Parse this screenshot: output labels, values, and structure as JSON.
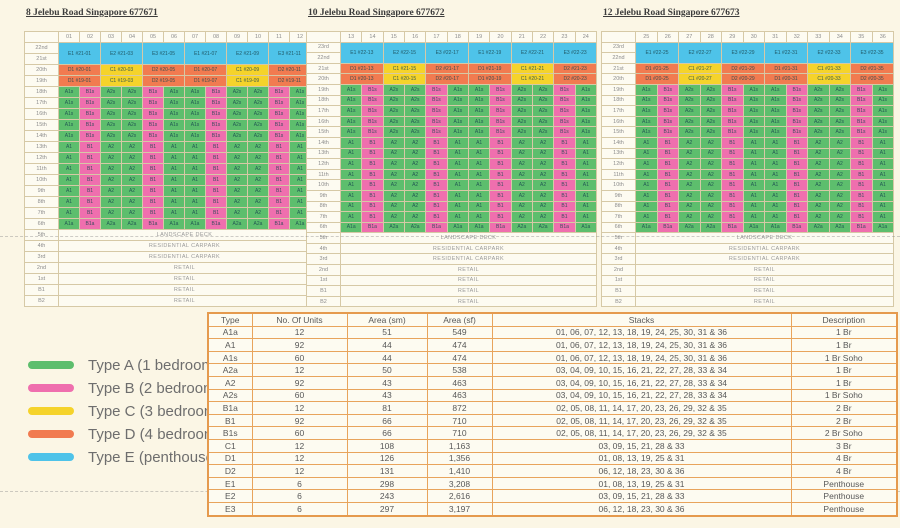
{
  "type_colors": {
    "A": "#5dbe6d",
    "B": "#ef6fae",
    "C": "#f5d32b",
    "D": "#f17b50",
    "E": "#4ec3e9"
  },
  "unit_patterns": {
    "std": [
      "A1",
      "B1",
      "A2",
      "A2",
      "B1",
      "A1",
      "A1",
      "B1",
      "A2",
      "A2",
      "B1",
      "A1"
    ],
    "soho": [
      "A1s",
      "B1s",
      "A2s",
      "A2s",
      "B1s",
      "A1s",
      "A1s",
      "B1s",
      "A2s",
      "A2s",
      "B1s",
      "A1s"
    ],
    "a6": [
      "A1a",
      "B1a",
      "A2a",
      "A2a",
      "B1a",
      "A1a",
      "A1a",
      "B1a",
      "A2a",
      "A2a",
      "B1a",
      "A1a"
    ]
  },
  "buildings": [
    {
      "title": "8 Jelebu Road Singapore 677671",
      "stacks": [
        "01",
        "02",
        "03",
        "04",
        "05",
        "06",
        "07",
        "08",
        "09",
        "10",
        "11",
        "12"
      ],
      "rows": [
        {
          "label": "22nd",
          "kind": "pent",
          "cells": [
            "E1 #21-01",
            "E2 #21-03",
            "E3 #21-05",
            "E1 #21-07",
            "E2 #21-09",
            "E3 #21-11"
          ]
        },
        {
          "label": "21st",
          "kind": "pent2"
        },
        {
          "label": "20th",
          "kind": "pairs",
          "cells": [
            "D1 #20-01",
            "C1 #20-03",
            "D2 #20-05",
            "D1 #20-07",
            "C1 #20-09",
            "D2 #20-11"
          ]
        },
        {
          "label": "19th",
          "kind": "pairs",
          "cells": [
            "D1 #19-01",
            "C1 #19-03",
            "D2 #19-05",
            "D1 #19-07",
            "C1 #19-09",
            "D2 #19-11"
          ]
        },
        {
          "label": "18th",
          "kind": "units",
          "pattern": "soho"
        },
        {
          "label": "17th",
          "kind": "units",
          "pattern": "soho"
        },
        {
          "label": "16th",
          "kind": "units",
          "pattern": "soho"
        },
        {
          "label": "15th",
          "kind": "units",
          "pattern": "soho"
        },
        {
          "label": "14th",
          "kind": "units",
          "pattern": "soho"
        },
        {
          "label": "13th",
          "kind": "units",
          "pattern": "std"
        },
        {
          "label": "12th",
          "kind": "units",
          "pattern": "std"
        },
        {
          "label": "11th",
          "kind": "units",
          "pattern": "std"
        },
        {
          "label": "10th",
          "kind": "units",
          "pattern": "std"
        },
        {
          "label": "9th",
          "kind": "units",
          "pattern": "std"
        },
        {
          "label": "8th",
          "kind": "units",
          "pattern": "std"
        },
        {
          "label": "7th",
          "kind": "units",
          "pattern": "std"
        },
        {
          "label": "6th",
          "kind": "units",
          "pattern": "a6"
        },
        {
          "label": "5th",
          "kind": "full",
          "text": "LANDSCAPE DECK"
        },
        {
          "label": "4th",
          "kind": "full",
          "text": "RESIDENTIAL CARPARK"
        },
        {
          "label": "3rd",
          "kind": "full",
          "text": "RESIDENTIAL CARPARK"
        },
        {
          "label": "2nd",
          "kind": "full",
          "text": "RETAIL"
        },
        {
          "label": "1st",
          "kind": "full",
          "text": "RETAIL"
        },
        {
          "label": "B1",
          "kind": "full",
          "text": "RETAIL"
        },
        {
          "label": "B2",
          "kind": "full",
          "text": "RETAIL"
        }
      ]
    },
    {
      "title": "10 Jelebu Road Singapore 677672",
      "stacks": [
        "13",
        "14",
        "15",
        "16",
        "17",
        "18",
        "19",
        "20",
        "21",
        "22",
        "23",
        "24"
      ],
      "rows": [
        {
          "label": "23rd",
          "kind": "pent",
          "cells": [
            "E1 #22-13",
            "E2 #22-15",
            "E3 #22-17",
            "E1 #22-19",
            "E2 #22-21",
            "E3 #22-23"
          ]
        },
        {
          "label": "22nd",
          "kind": "pent2"
        },
        {
          "label": "21st",
          "kind": "pairs",
          "cells": [
            "D1 #21-13",
            "C1 #21-15",
            "D2 #21-17",
            "D1 #21-19",
            "C1 #21-21",
            "D2 #21-23"
          ]
        },
        {
          "label": "20th",
          "kind": "pairs",
          "cells": [
            "D1 #20-13",
            "C1 #20-15",
            "D2 #20-17",
            "D1 #20-19",
            "C1 #20-21",
            "D2 #20-23"
          ]
        },
        {
          "label": "19th",
          "kind": "units",
          "pattern": "soho"
        },
        {
          "label": "18th",
          "kind": "units",
          "pattern": "soho"
        },
        {
          "label": "17th",
          "kind": "units",
          "pattern": "soho"
        },
        {
          "label": "16th",
          "kind": "units",
          "pattern": "soho"
        },
        {
          "label": "15th",
          "kind": "units",
          "pattern": "soho"
        },
        {
          "label": "14th",
          "kind": "units",
          "pattern": "std"
        },
        {
          "label": "13th",
          "kind": "units",
          "pattern": "std"
        },
        {
          "label": "12th",
          "kind": "units",
          "pattern": "std"
        },
        {
          "label": "11th",
          "kind": "units",
          "pattern": "std"
        },
        {
          "label": "10th",
          "kind": "units",
          "pattern": "std"
        },
        {
          "label": "9th",
          "kind": "units",
          "pattern": "std"
        },
        {
          "label": "8th",
          "kind": "units",
          "pattern": "std"
        },
        {
          "label": "7th",
          "kind": "units",
          "pattern": "std"
        },
        {
          "label": "6th",
          "kind": "units",
          "pattern": "a6"
        },
        {
          "label": "5th",
          "kind": "full",
          "text": "LANDSCAPE DECK"
        },
        {
          "label": "4th",
          "kind": "full",
          "text": "RESIDENTIAL CARPARK"
        },
        {
          "label": "3rd",
          "kind": "full",
          "text": "RESIDENTIAL CARPARK"
        },
        {
          "label": "2nd",
          "kind": "full",
          "text": "RETAIL"
        },
        {
          "label": "1st",
          "kind": "full",
          "text": "RETAIL"
        },
        {
          "label": "B1",
          "kind": "full",
          "text": "RETAIL"
        },
        {
          "label": "B2",
          "kind": "full",
          "text": "RETAIL"
        }
      ]
    },
    {
      "title": "12 Jelebu Road Singapore 677673",
      "stacks": [
        "25",
        "26",
        "27",
        "28",
        "29",
        "30",
        "31",
        "32",
        "33",
        "34",
        "35",
        "36"
      ],
      "rows": [
        {
          "label": "23rd",
          "kind": "pent",
          "cells": [
            "E1 #22-25",
            "E2 #22-27",
            "E3 #22-29",
            "E1 #22-31",
            "E2 #22-33",
            "E3 #22-35"
          ]
        },
        {
          "label": "22nd",
          "kind": "pent2"
        },
        {
          "label": "21st",
          "kind": "pairs",
          "cells": [
            "D1 #21-25",
            "C1 #21-27",
            "D2 #21-29",
            "D1 #21-31",
            "C1 #21-33",
            "D2 #21-35"
          ]
        },
        {
          "label": "20th",
          "kind": "pairs",
          "cells": [
            "D1 #20-25",
            "C1 #20-27",
            "D2 #20-29",
            "D1 #20-31",
            "C1 #20-33",
            "D2 #20-35"
          ]
        },
        {
          "label": "19th",
          "kind": "units",
          "pattern": "soho"
        },
        {
          "label": "18th",
          "kind": "units",
          "pattern": "soho"
        },
        {
          "label": "17th",
          "kind": "units",
          "pattern": "soho"
        },
        {
          "label": "16th",
          "kind": "units",
          "pattern": "soho"
        },
        {
          "label": "15th",
          "kind": "units",
          "pattern": "soho"
        },
        {
          "label": "14th",
          "kind": "units",
          "pattern": "std"
        },
        {
          "label": "13th",
          "kind": "units",
          "pattern": "std"
        },
        {
          "label": "12th",
          "kind": "units",
          "pattern": "std"
        },
        {
          "label": "11th",
          "kind": "units",
          "pattern": "std"
        },
        {
          "label": "10th",
          "kind": "units",
          "pattern": "std"
        },
        {
          "label": "9th",
          "kind": "units",
          "pattern": "std"
        },
        {
          "label": "8th",
          "kind": "units",
          "pattern": "std"
        },
        {
          "label": "7th",
          "kind": "units",
          "pattern": "std"
        },
        {
          "label": "6th",
          "kind": "units",
          "pattern": "a6"
        },
        {
          "label": "5th",
          "kind": "full",
          "text": "LANDSCAPE DECK"
        },
        {
          "label": "4th",
          "kind": "full",
          "text": "RESIDENTIAL CARPARK"
        },
        {
          "label": "3rd",
          "kind": "full",
          "text": "RESIDENTIAL CARPARK"
        },
        {
          "label": "2nd",
          "kind": "full",
          "text": "RETAIL"
        },
        {
          "label": "1st",
          "kind": "full",
          "text": "RETAIL"
        },
        {
          "label": "B1",
          "kind": "full",
          "text": "RETAIL"
        },
        {
          "label": "B2",
          "kind": "full",
          "text": "RETAIL"
        }
      ]
    }
  ],
  "legend": [
    {
      "label": "Type A (1 bedroom)",
      "color": "#5dbe6d"
    },
    {
      "label": "Type B (2 bedroom)",
      "color": "#ef6fae"
    },
    {
      "label": "Type C (3 bedroom)",
      "color": "#f5d32b"
    },
    {
      "label": "Type D (4 bedroom)",
      "color": "#f17b50"
    },
    {
      "label": "Type E (penthouse)",
      "color": "#4ec3e9"
    }
  ],
  "table": {
    "headers": [
      "Type",
      "No. Of Units",
      "Area (sm)",
      "Area (sf)",
      "Stacks",
      "Description"
    ],
    "rows": [
      [
        "A1a",
        "12",
        "51",
        "549",
        "01, 06, 07, 12, 13, 18, 19, 24, 25, 30, 31 & 36",
        "1 Br"
      ],
      [
        "A1",
        "92",
        "44",
        "474",
        "01, 06, 07, 12, 13, 18, 19, 24, 25, 30, 31 & 36",
        "1 Br"
      ],
      [
        "A1s",
        "60",
        "44",
        "474",
        "01, 06, 07, 12, 13, 18, 19, 24, 25, 30, 31 & 36",
        "1 Br Soho"
      ],
      [
        "A2a",
        "12",
        "50",
        "538",
        "03, 04, 09, 10, 15, 16, 21, 22, 27, 28, 33 & 34",
        "1 Br"
      ],
      [
        "A2",
        "92",
        "43",
        "463",
        "03, 04, 09, 10, 15, 16, 21, 22, 27, 28, 33 & 34",
        "1 Br"
      ],
      [
        "A2s",
        "60",
        "43",
        "463",
        "03, 04, 09, 10, 15, 16, 21, 22, 27, 28, 33 & 34",
        "1 Br Soho"
      ],
      [
        "B1a",
        "12",
        "81",
        "872",
        "02, 05, 08, 11, 14, 17, 20, 23, 26, 29, 32 & 35",
        "2 Br"
      ],
      [
        "B1",
        "92",
        "66",
        "710",
        "02, 05, 08, 11, 14, 17, 20, 23, 26, 29, 32 & 35",
        "2 Br"
      ],
      [
        "B1s",
        "60",
        "66",
        "710",
        "02, 05, 08, 11, 14, 17, 20, 23, 26, 29, 32 & 35",
        "2 Br Soho"
      ],
      [
        "C1",
        "12",
        "108",
        "1,163",
        "03, 09, 15, 21, 28 & 33",
        "3 Br"
      ],
      [
        "D1",
        "12",
        "126",
        "1,356",
        "01, 08, 13, 19, 25 & 31",
        "4 Br"
      ],
      [
        "D2",
        "12",
        "131",
        "1,410",
        "06, 12, 18, 23, 30 & 36",
        "4 Br"
      ],
      [
        "E1",
        "6",
        "298",
        "3,208",
        "01, 08, 13, 19, 25 & 31",
        "Penthouse"
      ],
      [
        "E2",
        "6",
        "243",
        "2,616",
        "03, 09, 15, 21, 28 & 33",
        "Penthouse"
      ],
      [
        "E3",
        "6",
        "297",
        "3,197",
        "06, 12, 18, 23, 30 & 36",
        "Penthouse"
      ]
    ]
  }
}
